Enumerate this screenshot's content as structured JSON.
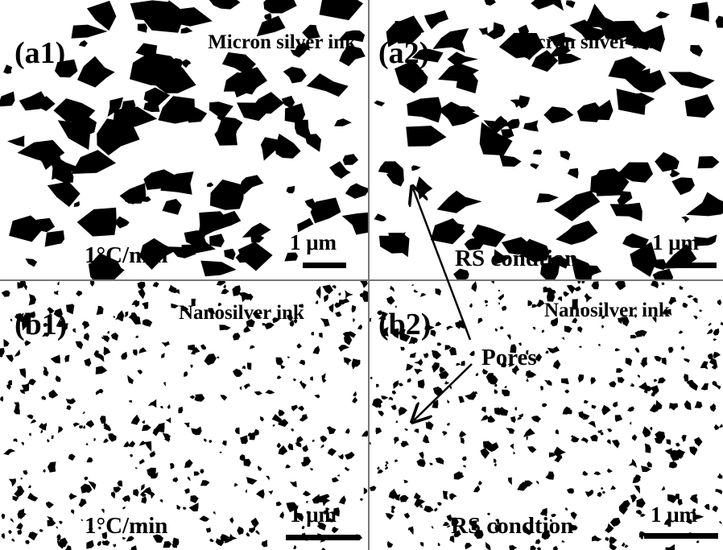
{
  "panels": [
    {
      "id": "(a1)",
      "sample": "Micron silver ink",
      "condition": "1°C/min",
      "scale": "1 μm"
    },
    {
      "id": "(a2)",
      "sample": "Micron silver ink",
      "condition": "RS condtion",
      "scale": "1 μm"
    },
    {
      "id": "(b1)",
      "sample": "Nanosilver ink",
      "condition": "1°C/min",
      "scale": "1 μm"
    },
    {
      "id": "(b2)",
      "sample": "Nanosilver ink",
      "condition": "RS condtion",
      "scale": "1 μm"
    }
  ],
  "annotation": "Pores"
}
